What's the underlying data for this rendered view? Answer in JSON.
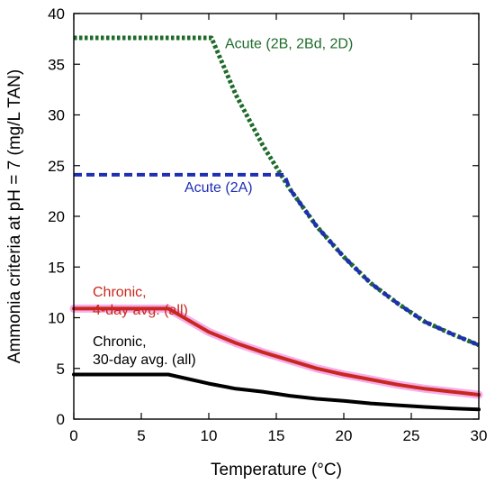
{
  "chart_data": {
    "type": "line",
    "title": "",
    "xlabel": "Temperature (°C)",
    "ylabel": "Ammonia criteria at pH = 7 (mg/L TAN)",
    "xlim": [
      0,
      30
    ],
    "ylim": [
      0,
      40
    ],
    "x_ticks": [
      "0",
      "5",
      "10",
      "15",
      "20",
      "25",
      "30"
    ],
    "y_ticks": [
      "0",
      "5",
      "10",
      "15",
      "20",
      "25",
      "30",
      "35",
      "40"
    ],
    "grid": false,
    "legend": "none",
    "series": [
      {
        "name": "Acute (2B, 2Bd, 2D)",
        "color": "#1e6b2a",
        "style": "dotted",
        "x": [
          0,
          10.2,
          12,
          14,
          16,
          18,
          20,
          22,
          24,
          26,
          28,
          30
        ],
        "y": [
          37.6,
          37.6,
          32.0,
          27.0,
          22.7,
          19.0,
          16.0,
          13.4,
          11.4,
          9.6,
          8.4,
          7.3
        ]
      },
      {
        "name": "Acute (2A)",
        "color": "#1f2fb3",
        "style": "dashed",
        "x": [
          0,
          15.6,
          16,
          18,
          20,
          22,
          24,
          26,
          28,
          30
        ],
        "y": [
          24.1,
          24.1,
          22.7,
          19.0,
          16.0,
          13.4,
          11.4,
          9.6,
          8.4,
          7.3
        ]
      },
      {
        "name": "Chronic, 4-day avg. (all)",
        "color": "#c8281e",
        "style": "solid",
        "x": [
          0,
          7,
          10,
          12,
          14,
          16,
          18,
          20,
          22,
          24,
          26,
          28,
          30
        ],
        "y": [
          10.9,
          10.9,
          8.6,
          7.5,
          6.6,
          5.8,
          5.0,
          4.4,
          3.9,
          3.4,
          3.0,
          2.7,
          2.4
        ]
      },
      {
        "name": "Chronic, 30-day avg. (all)",
        "color": "#000000",
        "style": "solid",
        "x": [
          0,
          7,
          10,
          12,
          14,
          16,
          18,
          20,
          22,
          24,
          26,
          28,
          30
        ],
        "y": [
          4.4,
          4.4,
          3.5,
          3.0,
          2.7,
          2.3,
          2.0,
          1.8,
          1.55,
          1.37,
          1.2,
          1.06,
          0.95
        ]
      }
    ],
    "annotations": [
      {
        "lines": [
          "Acute (2B, 2Bd, 2D)"
        ],
        "color": "#1e6b2a",
        "x": 11.2,
        "y": 36.6,
        "series": 0
      },
      {
        "lines": [
          "Acute (2A)"
        ],
        "color": "#1f2fb3",
        "x": 8.2,
        "y": 22.4,
        "series": 1
      },
      {
        "lines": [
          "Chronic,",
          "4-day avg. (all)"
        ],
        "color": "#c8281e",
        "x": 1.4,
        "y": 12.1,
        "series": 2
      },
      {
        "lines": [
          "Chronic,",
          "30-day avg. (all)"
        ],
        "color": "#000000",
        "x": 1.4,
        "y": 7.2,
        "series": 3
      }
    ]
  }
}
